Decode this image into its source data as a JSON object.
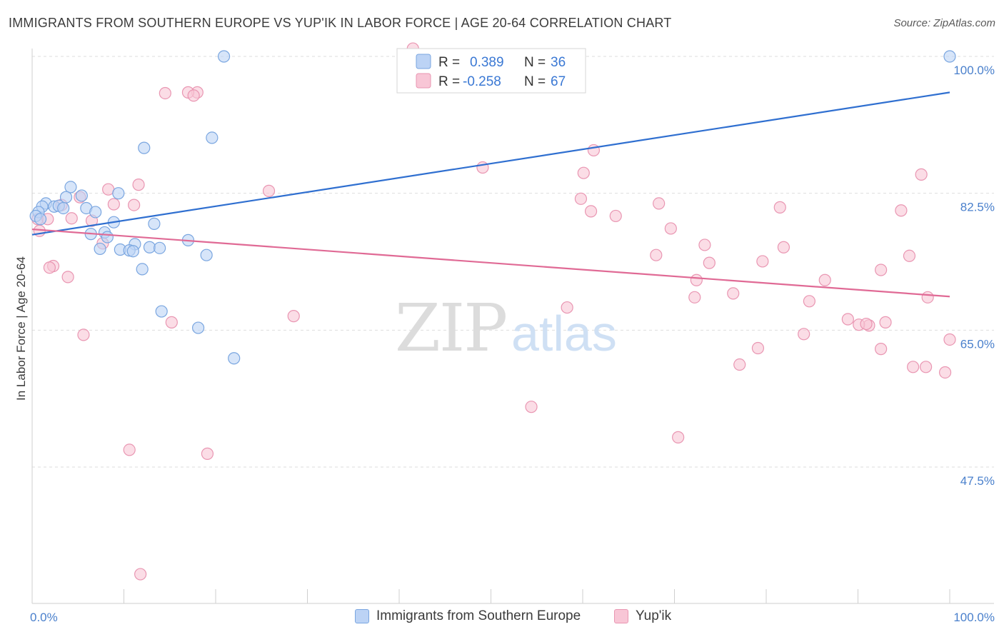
{
  "header": {
    "title": "IMMIGRANTS FROM SOUTHERN EUROPE VS YUP'IK IN LABOR FORCE | AGE 20-64 CORRELATION CHART",
    "source": "Source: ZipAtlas.com"
  },
  "watermark": {
    "zip": "ZIP",
    "atlas": "atlas"
  },
  "legend_box": {
    "r_label": "R =",
    "n_label": "N =",
    "rows": [
      {
        "r": "0.389",
        "n": "36"
      },
      {
        "r": "-0.258",
        "n": "67"
      }
    ]
  },
  "colors": {
    "blue_fill": "#bcd3f5",
    "blue_stroke": "#7aa6e0",
    "blue_line": "#2f6fd0",
    "pink_fill": "#f8c6d6",
    "pink_stroke": "#e996b2",
    "pink_line": "#e06a95",
    "axis_text": "#4a80cc"
  },
  "chart_data": {
    "type": "scatter",
    "title": "IMMIGRANTS FROM SOUTHERN EUROPE VS YUP'IK IN LABOR FORCE | AGE 20-64 CORRELATION CHART",
    "xlabel": "",
    "ylabel": "In Labor Force | Age 20-64",
    "xlim": [
      0,
      100
    ],
    "ylim": [
      30,
      101.5
    ],
    "x_tick_labels": [
      {
        "value": 0,
        "label": "0.0%"
      },
      {
        "value": 100,
        "label": "100.0%"
      }
    ],
    "y_ticks": [
      {
        "value": 100,
        "label": "100.0%"
      },
      {
        "value": 82.5,
        "label": "82.5%"
      },
      {
        "value": 65,
        "label": "65.0%"
      },
      {
        "value": 47.5,
        "label": "47.5%"
      }
    ],
    "grid": true,
    "legend_position": "bottom",
    "series": [
      {
        "name": "Immigrants from Southern Europe",
        "color": "#7aa6e0",
        "trend": {
          "x0": 0,
          "y0": 77.2,
          "x1": 100,
          "y1": 95.4
        },
        "points": [
          [
            20.9,
            100.0
          ],
          [
            100.0,
            100.0
          ],
          [
            19.6,
            89.6
          ],
          [
            12.2,
            88.3
          ],
          [
            4.2,
            83.3
          ],
          [
            5.4,
            82.2
          ],
          [
            9.4,
            82.5
          ],
          [
            3.7,
            82.0
          ],
          [
            1.5,
            81.2
          ],
          [
            1.1,
            80.8
          ],
          [
            2.4,
            80.8
          ],
          [
            2.9,
            80.9
          ],
          [
            3.4,
            80.6
          ],
          [
            5.9,
            80.6
          ],
          [
            0.7,
            80.1
          ],
          [
            0.4,
            79.6
          ],
          [
            0.9,
            79.2
          ],
          [
            6.9,
            80.1
          ],
          [
            8.9,
            78.8
          ],
          [
            13.3,
            78.6
          ],
          [
            6.4,
            77.3
          ],
          [
            7.9,
            77.5
          ],
          [
            8.2,
            76.9
          ],
          [
            11.2,
            76.0
          ],
          [
            17.0,
            76.5
          ],
          [
            7.4,
            75.4
          ],
          [
            9.6,
            75.3
          ],
          [
            10.6,
            75.2
          ],
          [
            12.8,
            75.6
          ],
          [
            13.9,
            75.5
          ],
          [
            11.0,
            75.1
          ],
          [
            19.0,
            74.6
          ],
          [
            12.0,
            72.8
          ],
          [
            14.1,
            67.4
          ],
          [
            18.1,
            65.3
          ],
          [
            22.0,
            61.4
          ]
        ]
      },
      {
        "name": "Yup'ik",
        "color": "#e996b2",
        "trend": {
          "x0": 0,
          "y0": 77.9,
          "x1": 100,
          "y1": 69.3
        },
        "points": [
          [
            41.5,
            101.0
          ],
          [
            18.0,
            95.4
          ],
          [
            14.5,
            95.3
          ],
          [
            17.0,
            95.4
          ],
          [
            17.6,
            95.0
          ],
          [
            61.2,
            88.0
          ],
          [
            49.1,
            85.8
          ],
          [
            60.1,
            85.1
          ],
          [
            96.9,
            84.9
          ],
          [
            11.6,
            83.6
          ],
          [
            8.3,
            83.0
          ],
          [
            25.8,
            82.8
          ],
          [
            5.2,
            82.0
          ],
          [
            59.8,
            81.8
          ],
          [
            68.3,
            81.2
          ],
          [
            8.9,
            81.1
          ],
          [
            3.2,
            81.0
          ],
          [
            81.5,
            80.7
          ],
          [
            94.7,
            80.3
          ],
          [
            60.9,
            80.2
          ],
          [
            63.6,
            79.6
          ],
          [
            0.6,
            79.2
          ],
          [
            1.7,
            79.2
          ],
          [
            4.3,
            79.3
          ],
          [
            6.5,
            79.0
          ],
          [
            69.6,
            78.0
          ],
          [
            0.8,
            77.7
          ],
          [
            73.3,
            75.9
          ],
          [
            81.9,
            75.6
          ],
          [
            68.0,
            74.6
          ],
          [
            95.6,
            74.5
          ],
          [
            79.6,
            73.8
          ],
          [
            73.8,
            73.6
          ],
          [
            2.3,
            73.2
          ],
          [
            1.9,
            73.0
          ],
          [
            92.5,
            72.7
          ],
          [
            3.9,
            71.8
          ],
          [
            72.4,
            71.4
          ],
          [
            86.4,
            71.4
          ],
          [
            76.4,
            69.7
          ],
          [
            72.2,
            69.2
          ],
          [
            97.6,
            69.2
          ],
          [
            84.7,
            68.7
          ],
          [
            58.3,
            67.9
          ],
          [
            28.5,
            66.8
          ],
          [
            88.9,
            66.4
          ],
          [
            15.2,
            66.0
          ],
          [
            93.0,
            66.0
          ],
          [
            91.2,
            65.6
          ],
          [
            90.1,
            65.7
          ],
          [
            90.9,
            65.8
          ],
          [
            5.6,
            64.4
          ],
          [
            84.1,
            64.5
          ],
          [
            100.0,
            63.8
          ],
          [
            79.1,
            62.7
          ],
          [
            92.5,
            62.6
          ],
          [
            96.0,
            60.3
          ],
          [
            97.4,
            60.3
          ],
          [
            77.1,
            60.6
          ],
          [
            99.5,
            59.6
          ],
          [
            54.4,
            55.2
          ],
          [
            70.4,
            51.3
          ],
          [
            10.6,
            49.7
          ],
          [
            19.1,
            49.2
          ],
          [
            11.8,
            33.8
          ],
          [
            7.7,
            76.1
          ],
          [
            11.1,
            81.0
          ]
        ]
      }
    ]
  }
}
